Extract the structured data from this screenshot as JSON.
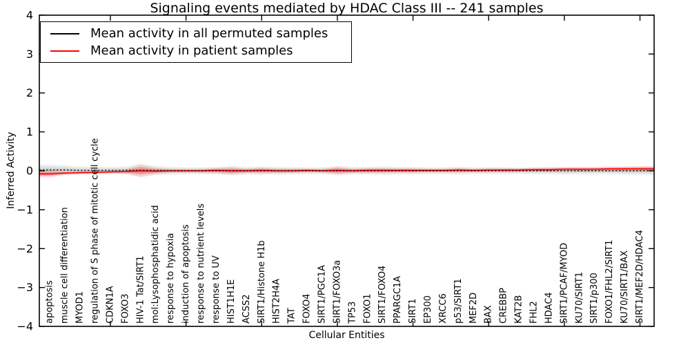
{
  "title": "Signaling events mediated by HDAC Class III -- 241 samples",
  "axes": {
    "xlabel": "Cellular Entities",
    "ylabel": "Inferred Activity",
    "ylim": [
      -4,
      4
    ],
    "ytick_values": [
      4,
      3,
      2,
      1,
      0,
      -1,
      -2,
      -3,
      -4
    ],
    "ytick_labels": [
      "4",
      "3",
      "2",
      "1",
      "0",
      "−1",
      "−2",
      "−3",
      "−4"
    ],
    "xtick_positions": [
      5,
      10,
      15,
      20,
      25,
      30,
      35,
      40
    ]
  },
  "legend": {
    "position": "upper left",
    "entries": [
      {
        "label": "Mean activity in all permuted samples",
        "color": "#000000"
      },
      {
        "label": "Mean activity in patient samples",
        "color": "#ff0000"
      }
    ]
  },
  "chart_data": {
    "type": "line",
    "title": "Signaling events mediated by HDAC Class III -- 241 samples",
    "xlabel": "Cellular Entities",
    "ylabel": "Inferred Activity",
    "ylim": [
      -4,
      4
    ],
    "grid": false,
    "legend_position": "upper left",
    "categories": [
      "apoptosis",
      "muscle cell differentiation",
      "MYOD1",
      "regulation of S phase of mitotic cell cycle",
      "CDKN1A",
      "FOXO3",
      "HIV-1 Tat/SIRT1",
      "mol:Lysophosphatidic acid",
      "response to hypoxia",
      "induction of apoptosis",
      "response to nutrient levels",
      "response to UV",
      "HIST1H1E",
      "ACSS2",
      "SIRT1/Histone H1b",
      "HIST2H4A",
      "TAT",
      "FOXO4",
      "SIRT1/PGC1A",
      "SIRT1/FOXO3a",
      "TP53",
      "FOXO1",
      "SIRT1/FOXO4",
      "PPARGC1A",
      "SIRT1",
      "EP300",
      "XRCC6",
      "p53/SIRT1",
      "MEF2D",
      "BAX",
      "CREBBP",
      "KAT2B",
      "FHL2",
      "HDAC4",
      "SIRT1/PCAF/MYOD",
      "KU70/SIRT1",
      "SIRT1/p300",
      "FOXO1/FHL2/SIRT1",
      "KU70/SIRT1/BAX",
      "SIRT1/MEF2D/HDAC4"
    ],
    "series": [
      {
        "name": "Mean activity in all permuted samples",
        "color": "#000000",
        "style": "dashed",
        "values": [
          0.02,
          0.02,
          0.01,
          0.01,
          0.01,
          0.01,
          0.01,
          0.01,
          0.0,
          0.0,
          0.0,
          0.0,
          0.0,
          0.0,
          0.0,
          0.0,
          0.0,
          0.0,
          0.0,
          0.0,
          0.0,
          0.0,
          0.0,
          0.0,
          0.0,
          0.0,
          0.0,
          0.0,
          0.0,
          0.0,
          0.0,
          0.0,
          0.0,
          0.0,
          0.0,
          0.0,
          0.0,
          0.0,
          0.0,
          0.0
        ]
      },
      {
        "name": "Mean activity in patient samples",
        "color": "#ff0000",
        "style": "solid",
        "values": [
          -0.08,
          -0.06,
          -0.05,
          -0.04,
          -0.03,
          -0.02,
          0.0,
          -0.01,
          0.0,
          0.0,
          0.0,
          0.01,
          0.0,
          0.0,
          0.01,
          0.0,
          0.0,
          0.01,
          0.0,
          0.01,
          0.0,
          0.01,
          0.01,
          0.01,
          0.01,
          0.01,
          0.01,
          0.02,
          0.01,
          0.02,
          0.02,
          0.02,
          0.03,
          0.03,
          0.04,
          0.04,
          0.04,
          0.05,
          0.05,
          0.05
        ]
      }
    ],
    "bands": [
      {
        "series": "Mean activity in all permuted samples",
        "color": "#999999",
        "half_widths": [
          0.14,
          0.12,
          0.1,
          0.1,
          0.09,
          0.1,
          0.16,
          0.12,
          0.1,
          0.09,
          0.09,
          0.1,
          0.12,
          0.1,
          0.11,
          0.1,
          0.1,
          0.09,
          0.09,
          0.12,
          0.1,
          0.1,
          0.11,
          0.1,
          0.1,
          0.09,
          0.09,
          0.1,
          0.09,
          0.09,
          0.09,
          0.08,
          0.09,
          0.09,
          0.1,
          0.09,
          0.09,
          0.09,
          0.1,
          0.11
        ]
      },
      {
        "series": "Mean activity in patient samples",
        "color": "#ff0000",
        "half_widths": [
          0.1,
          0.05,
          0.04,
          0.04,
          0.04,
          0.06,
          0.17,
          0.08,
          0.05,
          0.05,
          0.05,
          0.07,
          0.1,
          0.06,
          0.08,
          0.06,
          0.06,
          0.05,
          0.05,
          0.1,
          0.06,
          0.07,
          0.07,
          0.06,
          0.06,
          0.05,
          0.05,
          0.06,
          0.05,
          0.05,
          0.05,
          0.05,
          0.05,
          0.06,
          0.05,
          0.06,
          0.06,
          0.06,
          0.06,
          0.07
        ]
      }
    ]
  }
}
